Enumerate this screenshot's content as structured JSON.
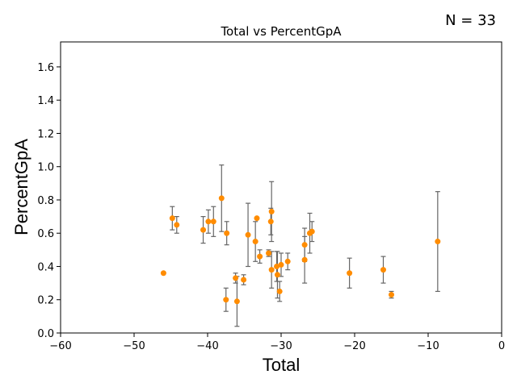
{
  "annotation": "N = 33",
  "chart_data": {
    "type": "scatter",
    "title": "Total vs PercentGpA",
    "xlabel": "Total",
    "ylabel": "PercentGpA",
    "xlim": [
      -60,
      0
    ],
    "ylim": [
      0,
      1.75
    ],
    "xticks": [
      -60,
      -50,
      -40,
      -30,
      -20,
      -10,
      0
    ],
    "xtick_labels": [
      "−60",
      "−50",
      "−40",
      "−30",
      "−20",
      "−10",
      "0"
    ],
    "yticks": [
      0,
      0.2,
      0.4,
      0.6,
      0.8,
      1.0,
      1.2,
      1.4,
      1.6
    ],
    "ytick_labels": [
      "0.0",
      "0.2",
      "0.4",
      "0.6",
      "0.8",
      "1.0",
      "1.2",
      "1.4",
      "1.6"
    ],
    "grid": false,
    "marker_color": "#ff8c00",
    "errorbar_color": "#666666",
    "points": [
      {
        "x": -46.0,
        "y": 0.36,
        "err": 0.0
      },
      {
        "x": -44.8,
        "y": 0.69,
        "err": 0.07
      },
      {
        "x": -44.2,
        "y": 0.65,
        "err": 0.05
      },
      {
        "x": -40.6,
        "y": 0.62,
        "err": 0.08
      },
      {
        "x": -39.9,
        "y": 0.67,
        "err": 0.07
      },
      {
        "x": -39.2,
        "y": 0.67,
        "err": 0.09
      },
      {
        "x": -38.1,
        "y": 0.81,
        "err": 0.2
      },
      {
        "x": -37.4,
        "y": 0.6,
        "err": 0.07
      },
      {
        "x": -37.5,
        "y": 0.2,
        "err": 0.07
      },
      {
        "x": -36.2,
        "y": 0.33,
        "err": 0.03
      },
      {
        "x": -36.0,
        "y": 0.19,
        "err": 0.15
      },
      {
        "x": -35.1,
        "y": 0.32,
        "err": 0.03
      },
      {
        "x": -34.5,
        "y": 0.59,
        "err": 0.19
      },
      {
        "x": -33.5,
        "y": 0.55,
        "err": 0.12
      },
      {
        "x": -33.3,
        "y": 0.69,
        "err": 0.0
      },
      {
        "x": -32.9,
        "y": 0.46,
        "err": 0.04
      },
      {
        "x": -31.7,
        "y": 0.48,
        "err": 0.02
      },
      {
        "x": -31.3,
        "y": 0.73,
        "err": 0.18
      },
      {
        "x": -31.4,
        "y": 0.67,
        "err": 0.08
      },
      {
        "x": -31.3,
        "y": 0.38,
        "err": 0.11
      },
      {
        "x": -30.6,
        "y": 0.4,
        "err": 0.09
      },
      {
        "x": -30.5,
        "y": 0.35,
        "err": 0.14
      },
      {
        "x": -30.2,
        "y": 0.25,
        "err": 0.06
      },
      {
        "x": -30.0,
        "y": 0.41,
        "err": 0.07
      },
      {
        "x": -29.1,
        "y": 0.43,
        "err": 0.05
      },
      {
        "x": -26.8,
        "y": 0.44,
        "err": 0.14
      },
      {
        "x": -26.8,
        "y": 0.53,
        "err": 0.1
      },
      {
        "x": -26.1,
        "y": 0.6,
        "err": 0.12
      },
      {
        "x": -25.8,
        "y": 0.61,
        "err": 0.06
      },
      {
        "x": -20.7,
        "y": 0.36,
        "err": 0.09
      },
      {
        "x": -16.1,
        "y": 0.38,
        "err": 0.08
      },
      {
        "x": -15.0,
        "y": 0.23,
        "err": 0.02
      },
      {
        "x": -8.7,
        "y": 0.55,
        "err": 0.3
      }
    ]
  }
}
